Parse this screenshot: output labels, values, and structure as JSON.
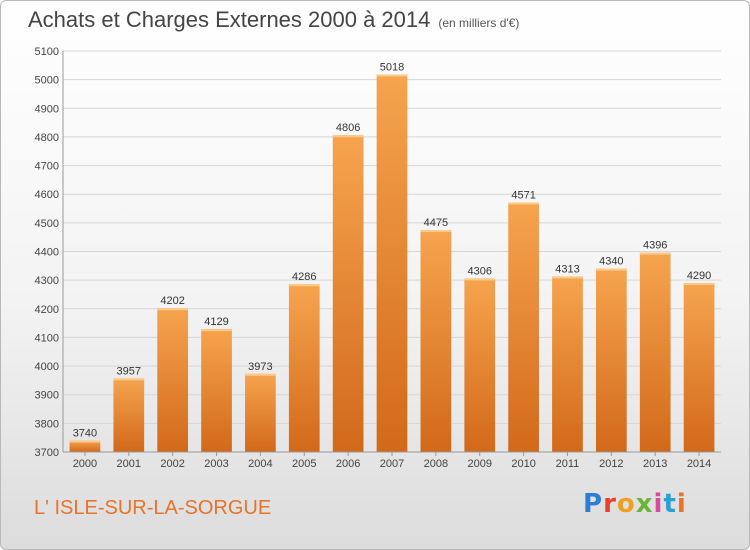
{
  "header": {
    "title": "Achats et Charges Externes 2000 à 2014",
    "subtitle": "(en milliers d'€)"
  },
  "footer": {
    "city": "L' ISLE-SUR-LA-SORGUE",
    "logo_text": "Proxiti"
  },
  "colors": {
    "bar_light": "#f6a44f",
    "bar_dark": "#d2691a",
    "city_text": "#e8732a"
  },
  "chart_data": {
    "type": "bar",
    "title": "Achats et Charges Externes 2000 à 2014",
    "subtitle": "(en milliers d'€)",
    "xlabel": "",
    "ylabel": "",
    "categories": [
      "2000",
      "2001",
      "2002",
      "2003",
      "2004",
      "2005",
      "2006",
      "2007",
      "2008",
      "2009",
      "2010",
      "2011",
      "2012",
      "2013",
      "2014"
    ],
    "values": [
      3740,
      3957,
      4202,
      4129,
      3973,
      4286,
      4806,
      5018,
      4475,
      4306,
      4571,
      4313,
      4340,
      4396,
      4290
    ],
    "ylim": [
      3700,
      5100
    ],
    "yticks": [
      3700,
      3800,
      3900,
      4000,
      4100,
      4200,
      4300,
      4400,
      4500,
      4600,
      4700,
      4800,
      4900,
      5000,
      5100
    ],
    "grid": true,
    "legend": "none"
  }
}
